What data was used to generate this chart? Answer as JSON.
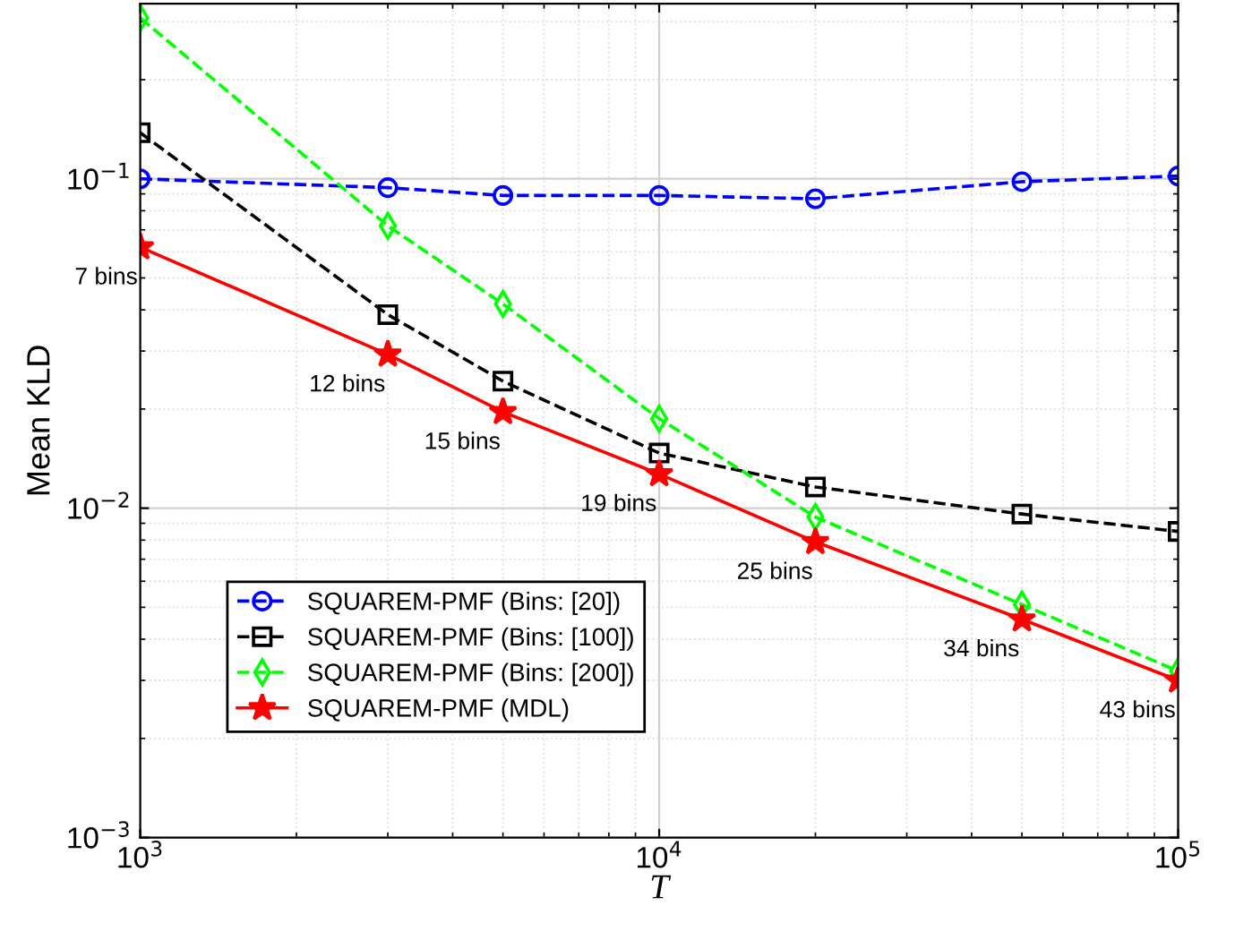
{
  "chart_data": {
    "type": "line",
    "xlabel": "T",
    "ylabel": "Mean KLD",
    "log": "xy",
    "grid": true,
    "legend": "bottom left",
    "x": [
      1000,
      3000,
      5000,
      10000,
      20000,
      50000,
      100000
    ],
    "xlim": [
      1000,
      100000
    ],
    "ylim": [
      0.001,
      0.34
    ],
    "xticks": [
      {
        "value": 1000,
        "label": "10$^{3}$"
      },
      {
        "value": 10000,
        "label": "10$^{4}$"
      },
      {
        "value": 100000,
        "label": "10$^{5}$"
      }
    ],
    "yticks": [
      {
        "value": 0.001,
        "label": "10$^{−3}$"
      },
      {
        "value": 0.01,
        "label": "10$^{−2}$"
      },
      {
        "value": 0.1,
        "label": "10$^{−1}$"
      }
    ],
    "series": [
      {
        "name": "SQUAREM-PMF (Bins: [20])",
        "color": "#0000ff",
        "marker": "circle",
        "line_style": "dashed",
        "values": [
          0.1,
          0.094,
          0.089,
          0.089,
          0.087,
          0.098,
          0.102
        ]
      },
      {
        "name": "SQUAREM-PMF (Bins: [100])",
        "color": "#000000",
        "marker": "square",
        "line_style": "dashed",
        "values": [
          0.138,
          0.0387,
          0.0243,
          0.0147,
          0.0116,
          0.0096,
          0.0085
        ]
      },
      {
        "name": "SQUAREM-PMF (Bins: [200])",
        "color": "#00ff00",
        "marker": "diamond",
        "line_style": "dashed",
        "values": [
          0.308,
          0.072,
          0.0417,
          0.0187,
          0.0094,
          0.0051,
          0.0032
        ]
      },
      {
        "name": "SQUAREM-PMF (MDL)",
        "color": "#ff0000",
        "marker": "star",
        "line_style": "solid",
        "values": [
          0.062,
          0.0293,
          0.0196,
          0.0127,
          0.0079,
          0.0046,
          0.003
        ]
      }
    ],
    "annotations": [
      {
        "text": "7 bins",
        "x": 1000,
        "y": 0.062
      },
      {
        "text": "12 bins",
        "x": 3000,
        "y": 0.0293
      },
      {
        "text": "15 bins",
        "x": 5000,
        "y": 0.0196
      },
      {
        "text": "19 bins",
        "x": 10000,
        "y": 0.0127
      },
      {
        "text": "25 bins",
        "x": 20000,
        "y": 0.0079
      },
      {
        "text": "34 bins",
        "x": 50000,
        "y": 0.0046
      },
      {
        "text": "43 bins",
        "x": 100000,
        "y": 0.003
      }
    ]
  }
}
